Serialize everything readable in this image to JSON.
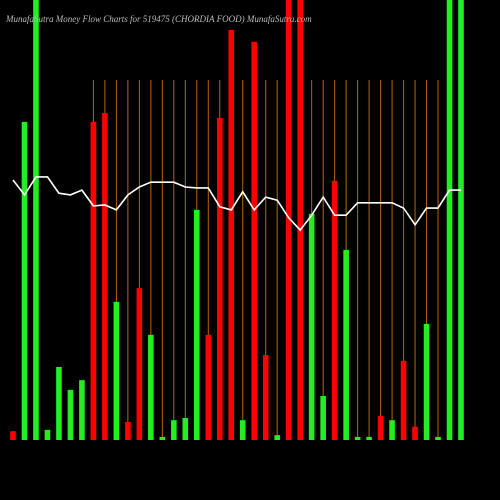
{
  "chart_data": {
    "type": "money-flow",
    "title": "MunafaSutra  Money Flow  Charts for 519475  (CHORDIA FOOD) MunafaSutra.com",
    "categories": [
      null,
      null,
      null,
      null,
      null,
      null,
      null,
      null,
      null,
      null,
      null,
      null,
      null,
      null,
      null,
      null,
      null,
      null,
      null,
      null,
      null,
      null,
      null,
      null,
      null,
      null,
      null,
      null,
      null,
      null,
      null,
      null,
      null,
      null,
      null,
      null,
      null,
      null,
      null,
      null
    ],
    "values": [
      2,
      72.3,
      100,
      2.3,
      16.6,
      11.4,
      13.6,
      72.3,
      74.3,
      31.4,
      4.1,
      34.5,
      23.9,
      0.7,
      4.5,
      5,
      52.3,
      23.9,
      73.2,
      93.2,
      4.5,
      90.5,
      19.3,
      1.1,
      100,
      100,
      51.4,
      10,
      58.9,
      43.2,
      0.7,
      0.7,
      5.5,
      4.5,
      18,
      3,
      26.4,
      0.7,
      100,
      100
    ],
    "colors": [
      "#ff0000",
      "#22ee22",
      "#22ee22",
      "#22ee22",
      "#22ee22",
      "#22ee22",
      "#22ee22",
      "#ff0000",
      "#ff0000",
      "#22ee22",
      "#ff0000",
      "#ff0000",
      "#22ee22",
      "#22ee22",
      "#22ee22",
      "#22ee22",
      "#22ee22",
      "#ff0000",
      "#ff0000",
      "#ff0000",
      "#22ee22",
      "#ff0000",
      "#ff0000",
      "#22ee22",
      "#ff0000",
      "#ff0000",
      "#22ee22",
      "#22ee22",
      "#ff0000",
      "#22ee22",
      "#22ee22",
      "#22ee22",
      "#ff0000",
      "#22ee22",
      "#ff0000",
      "#ff0000",
      "#22ee22",
      "#22ee22",
      "#22ee22",
      "#22ee22"
    ],
    "line_values": [
      59.1,
      55.7,
      59.8,
      59.8,
      56.1,
      55.7,
      56.8,
      53.2,
      53.4,
      52.3,
      55.7,
      57.5,
      58.6,
      58.6,
      58.6,
      57.5,
      57.3,
      57.3,
      53,
      52.3,
      56.4,
      52.3,
      55.2,
      54.5,
      50.5,
      47.7,
      51.1,
      55.2,
      51.1,
      51.1,
      53.9,
      53.9,
      53.9,
      53.9,
      52.7,
      48.9,
      52.7,
      52.7,
      56.8,
      56.8
    ],
    "line_color": "#ffffff",
    "ylim": [
      0,
      100
    ]
  }
}
